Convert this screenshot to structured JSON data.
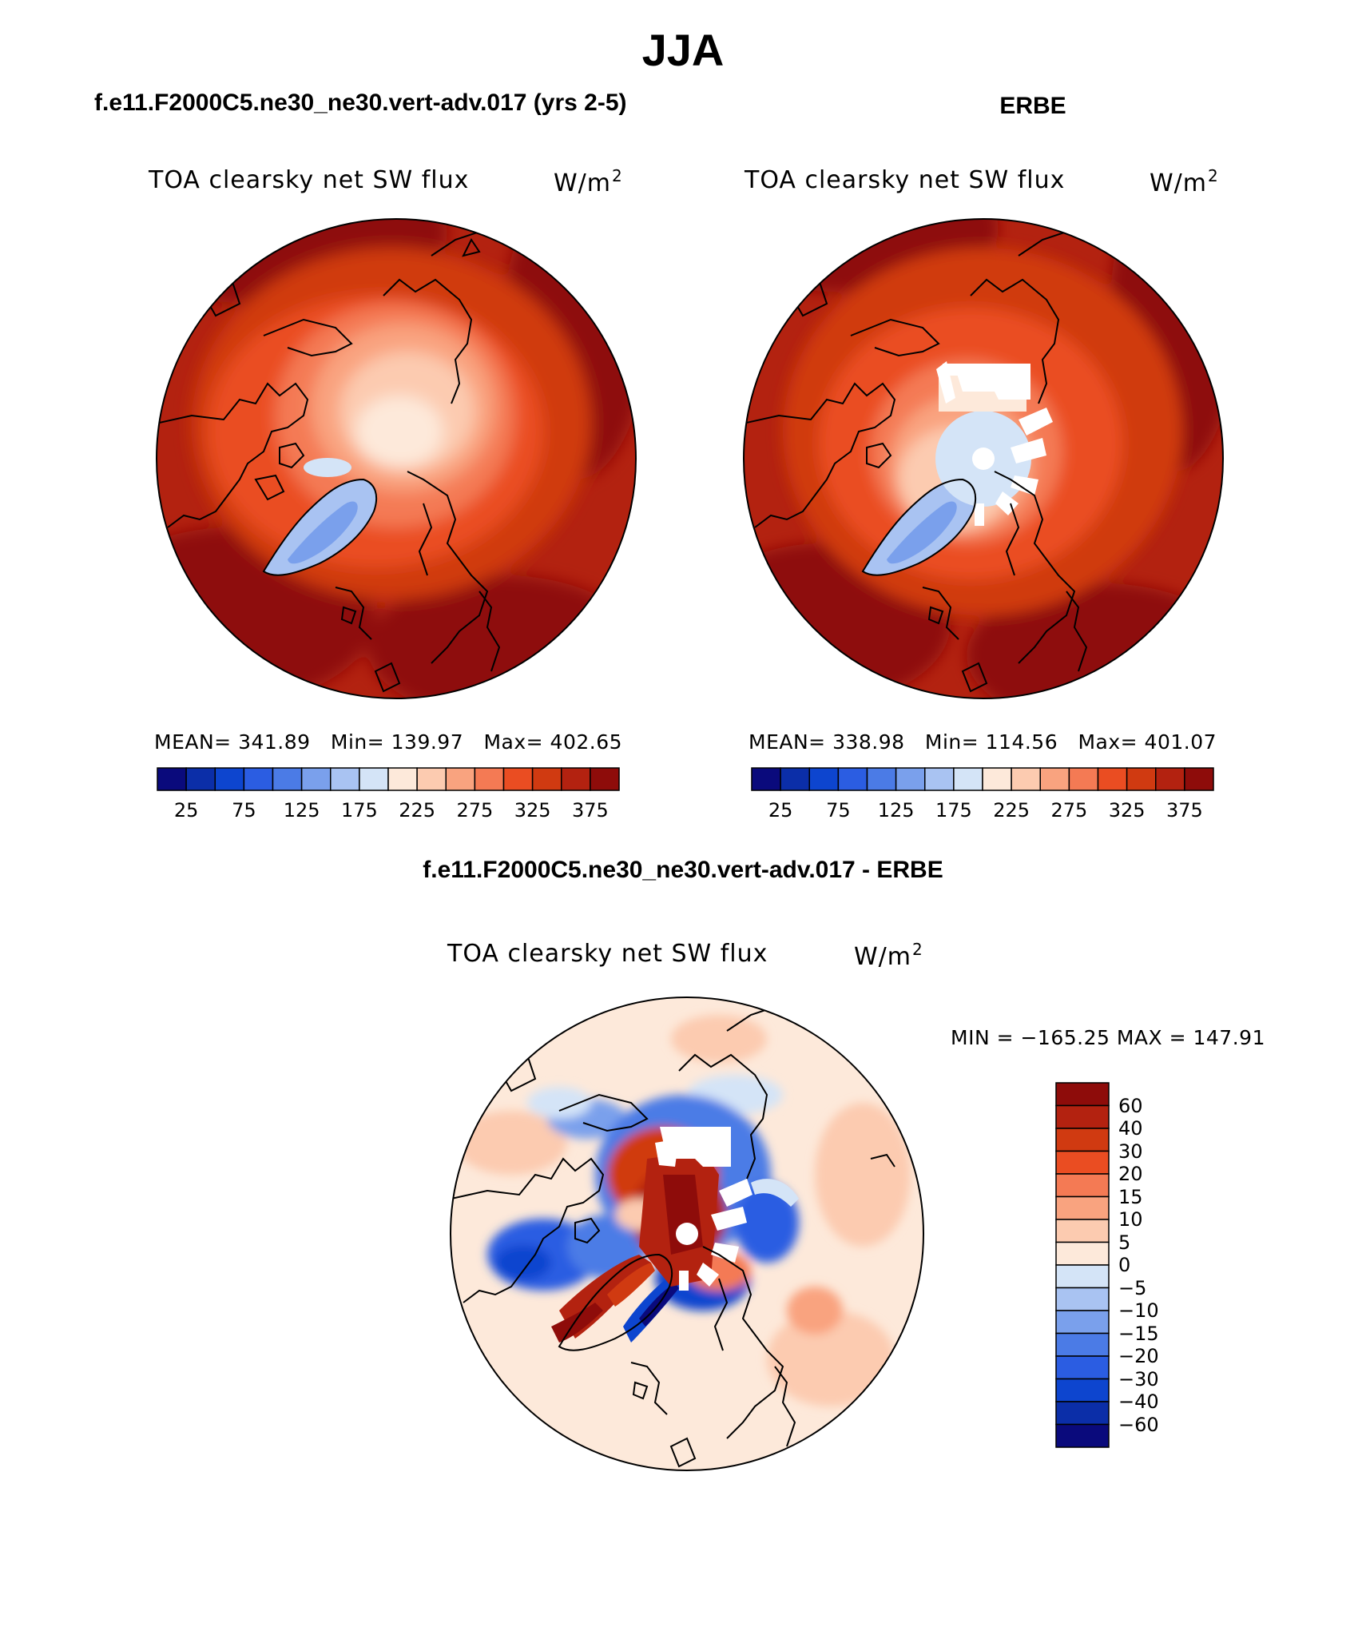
{
  "page": {
    "season": "JJA",
    "left_case": "f.e11.F2000C5.ne30_ne30.vert-adv.017 (yrs 2-5)",
    "right_case": "ERBE",
    "diff_case": "f.e11.F2000C5.ne30_ne30.vert-adv.017 - ERBE"
  },
  "panels": {
    "model": {
      "variable": "TOA clearsky net SW flux",
      "units": "W/m",
      "units_exp": "2",
      "mean_text": "MEAN= 341.89",
      "min_text": "Min= 139.97",
      "max_text": "Max= 402.65"
    },
    "obs": {
      "variable": "TOA clearsky net SW flux",
      "units": "W/m",
      "units_exp": "2",
      "mean_text": "MEAN= 338.98",
      "min_text": "Min= 114.56",
      "max_text": "Max= 401.07"
    },
    "diff": {
      "variable": "TOA clearsky net SW flux",
      "units": "W/m",
      "units_exp": "2",
      "minmax_text": "MIN = −165.25 MAX = 147.91"
    }
  },
  "colorbar_main": {
    "tick_labels": [
      "25",
      "75",
      "125",
      "175",
      "225",
      "275",
      "325",
      "375"
    ],
    "colors": [
      "#0a0a7c",
      "#0b2ea8",
      "#0d45cf",
      "#2b5de2",
      "#4b7be6",
      "#7aa0ec",
      "#a9c3f2",
      "#d4e4f7",
      "#fde9da",
      "#fccbb0",
      "#f9a37f",
      "#f47a54",
      "#ea4d22",
      "#d03a11",
      "#b32210",
      "#8e0c0a"
    ]
  },
  "colorbar_diff": {
    "labels": [
      "60",
      "40",
      "30",
      "20",
      "15",
      "10",
      "5",
      "0",
      "−5",
      "−10",
      "−15",
      "−20",
      "−30",
      "−40",
      "−60"
    ],
    "colors": [
      "#8e0c0a",
      "#b32210",
      "#d03a11",
      "#ea4d22",
      "#f47a54",
      "#f9a37f",
      "#fccbb0",
      "#fde9da",
      "#d4e4f7",
      "#a9c3f2",
      "#7aa0ec",
      "#4b7be6",
      "#2b5de2",
      "#0d45cf",
      "#0b2ea8",
      "#0a0a7c"
    ]
  }
}
